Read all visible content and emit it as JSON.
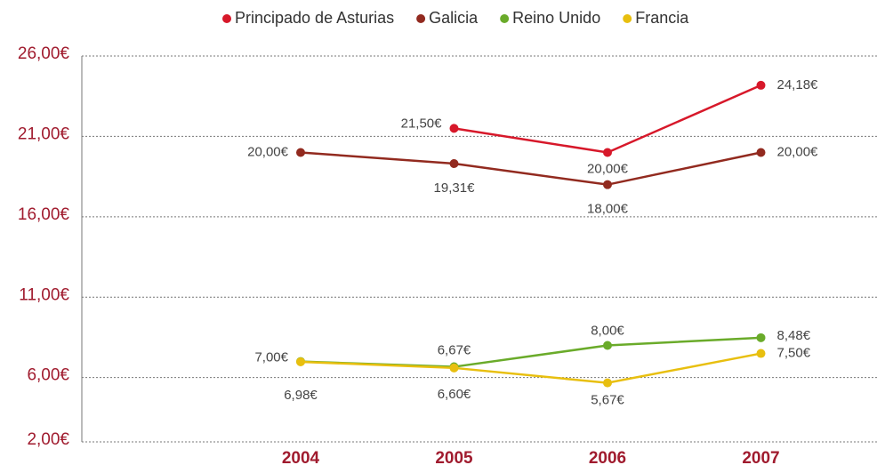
{
  "chart_data": {
    "type": "line",
    "categories": [
      "2004",
      "2005",
      "2006",
      "2007"
    ],
    "series": [
      {
        "name": "Principado de Asturias",
        "color": "#d7182a",
        "values": [
          null,
          21.5,
          20,
          24.18
        ],
        "value_labels": [
          null,
          "21,50€",
          "20,00€",
          "24,18€"
        ]
      },
      {
        "name": "Galicia",
        "color": "#922a1f",
        "values": [
          20,
          19.31,
          18,
          20
        ],
        "value_labels": [
          "20,00€",
          "19,31€",
          "18,00€",
          "20,00€"
        ]
      },
      {
        "name": "Reino Unido",
        "color": "#6aab2a",
        "values": [
          7,
          6.67,
          8,
          8.48
        ],
        "value_labels": [
          "7,00€",
          "6,67€",
          "8,00€",
          "8,48€"
        ]
      },
      {
        "name": "Francia",
        "color": "#e8bf0f",
        "values": [
          6.98,
          6.6,
          5.67,
          7.5
        ],
        "value_labels": [
          "6,98€",
          "6,60€",
          "5,67€",
          "7,50€"
        ]
      }
    ],
    "ylim": [
      2,
      26
    ],
    "yticks": [
      {
        "value": 2,
        "label": "2,00€"
      },
      {
        "value": 6,
        "label": "6,00€"
      },
      {
        "value": 11,
        "label": "11,00€"
      },
      {
        "value": 16,
        "label": "16,00€"
      },
      {
        "value": 21,
        "label": "21,00€"
      },
      {
        "value": 26,
        "label": "26,00€"
      }
    ],
    "grid": true,
    "legend": "top"
  }
}
